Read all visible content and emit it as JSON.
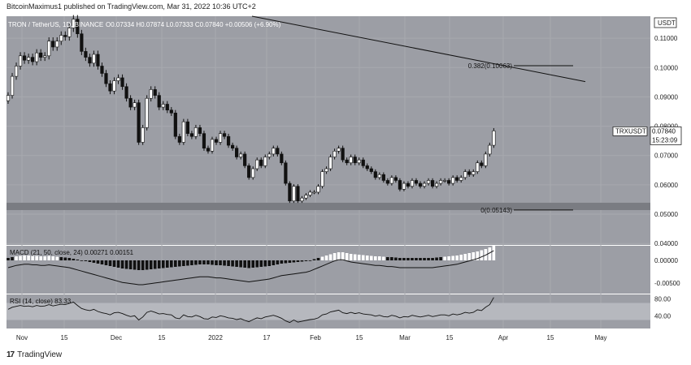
{
  "header": {
    "published": "BitcoinMaximus1 published on TradingView.com, Mar 31, 2022 10:36 UTC+2"
  },
  "footer": {
    "brand": "TradingView",
    "logo": "17"
  },
  "chart_data": {
    "type": "candlestick",
    "symbol_line": "TRON / TetherUS, 1D, BINANCE",
    "ohlc_line": "O0.07334  H0.07874  L0.07333  C0.07840  +0.00506 (+6.90%)",
    "currency": "USDT",
    "price_ticks": [
      "0.11000",
      "0.10000",
      "0.09000",
      "0.08000",
      "0.07000",
      "0.06000",
      "0.05000",
      "0.04000"
    ],
    "price_range": [
      0.0395,
      0.1175
    ],
    "x_ticks": [
      "Nov",
      "15",
      "Dec",
      "15",
      "2022",
      "17",
      "Feb",
      "15",
      "Mar",
      "15",
      "Apr",
      "15",
      "May"
    ],
    "last_price": {
      "symbol": "TRXUSDT",
      "price": "0.07840",
      "countdown": "15:23:09",
      "value": 0.0784
    },
    "fib_levels": [
      {
        "label": "0.382(0.10063)",
        "value": 0.10063
      },
      {
        "label": "0(0.05143)",
        "value": 0.05143
      }
    ],
    "support_zone": [
      0.0514,
      0.0539
    ],
    "descending_resistance": {
      "from": 0.1175,
      "to": 0.0952
    },
    "closes": [
      0.0905,
      0.097,
      0.1005,
      0.104,
      0.1025,
      0.1035,
      0.102,
      0.105,
      0.1035,
      0.104,
      0.109,
      0.107,
      0.109,
      0.111,
      0.1105,
      0.1135,
      0.1165,
      0.1115,
      0.1055,
      0.1035,
      0.1015,
      0.1045,
      0.1005,
      0.098,
      0.0945,
      0.092,
      0.0955,
      0.0965,
      0.0935,
      0.0895,
      0.0865,
      0.088,
      0.0745,
      0.0795,
      0.0895,
      0.0925,
      0.0905,
      0.0865,
      0.0875,
      0.0855,
      0.0845,
      0.0765,
      0.0745,
      0.0815,
      0.0775,
      0.0765,
      0.0795,
      0.0775,
      0.0725,
      0.0715,
      0.0755,
      0.0745,
      0.0775,
      0.0765,
      0.0735,
      0.0725,
      0.0695,
      0.0705,
      0.0665,
      0.0625,
      0.0655,
      0.0685,
      0.0665,
      0.0695,
      0.0705,
      0.0725,
      0.0705,
      0.0675,
      0.0605,
      0.0545,
      0.0595,
      0.0545,
      0.0555,
      0.0565,
      0.0575,
      0.0575,
      0.0595,
      0.0645,
      0.0655,
      0.0695,
      0.0715,
      0.0725,
      0.0685,
      0.0675,
      0.0695,
      0.0675,
      0.0685,
      0.0665,
      0.0655,
      0.0645,
      0.0625,
      0.0635,
      0.0615,
      0.0605,
      0.0625,
      0.0615,
      0.0585,
      0.0605,
      0.0595,
      0.0615,
      0.0605,
      0.0595,
      0.0605,
      0.0615,
      0.0595,
      0.0605,
      0.0615,
      0.0615,
      0.0605,
      0.0625,
      0.0615,
      0.0625,
      0.0645,
      0.0635,
      0.0645,
      0.0675,
      0.0665,
      0.0705,
      0.0735,
      0.0784
    ],
    "indicators": {
      "macd": {
        "label": "MACD (21, 50, close, 24)",
        "values": [
          "0.00271",
          "0.00151"
        ],
        "ticks": [
          "0.00000",
          "-0.00500"
        ],
        "histogram": [
          0.3,
          0.4,
          0.5,
          0.55,
          0.6,
          0.6,
          0.55,
          0.55,
          0.5,
          0.5,
          0.55,
          0.5,
          0.45,
          0.4,
          0.35,
          0.3,
          0.2,
          0.1,
          0,
          -0.1,
          -0.2,
          -0.3,
          -0.4,
          -0.5,
          -0.6,
          -0.7,
          -0.8,
          -0.9,
          -1,
          -1.05,
          -1.1,
          -1.15,
          -1.2,
          -1.2,
          -1.15,
          -1.1,
          -1.05,
          -1,
          -0.95,
          -0.9,
          -0.85,
          -0.8,
          -0.75,
          -0.7,
          -0.65,
          -0.6,
          -0.55,
          -0.5,
          -0.5,
          -0.5,
          -0.55,
          -0.6,
          -0.6,
          -0.65,
          -0.7,
          -0.75,
          -0.8,
          -0.85,
          -0.9,
          -0.95,
          -0.9,
          -0.85,
          -0.8,
          -0.75,
          -0.7,
          -0.6,
          -0.5,
          -0.4,
          -0.35,
          -0.3,
          -0.25,
          -0.2,
          -0.15,
          -0.1,
          0,
          0.15,
          0.3,
          0.45,
          0.6,
          0.75,
          0.9,
          1,
          1,
          0.9,
          0.8,
          0.75,
          0.7,
          0.65,
          0.6,
          0.55,
          0.5,
          0.5,
          0.45,
          0.4,
          0.4,
          0.35,
          0.3,
          0.3,
          0.3,
          0.3,
          0.3,
          0.3,
          0.3,
          0.3,
          0.3,
          0.35,
          0.4,
          0.45,
          0.5,
          0.55,
          0.6,
          0.7,
          0.8,
          0.9,
          1,
          1.1,
          1.25,
          1.4,
          1.6,
          1.8
        ]
      },
      "rsi": {
        "label": "RSI (14, close)",
        "value": "83.33",
        "ticks": [
          "80.00",
          "40.00"
        ],
        "band": [
          30,
          70
        ],
        "values": [
          55,
          60,
          62,
          64,
          62,
          63,
          61,
          64,
          62,
          63,
          66,
          63,
          65,
          67,
          66,
          69,
          72,
          64,
          57,
          54,
          52,
          55,
          50,
          47,
          45,
          42,
          47,
          48,
          45,
          41,
          38,
          40,
          30,
          37,
          48,
          51,
          48,
          44,
          45,
          43,
          42,
          35,
          33,
          42,
          38,
          37,
          41,
          38,
          33,
          32,
          37,
          36,
          40,
          38,
          35,
          34,
          31,
          33,
          29,
          26,
          31,
          35,
          33,
          37,
          39,
          41,
          38,
          34,
          28,
          24,
          30,
          25,
          27,
          29,
          31,
          32,
          35,
          42,
          44,
          49,
          51,
          53,
          47,
          45,
          48,
          45,
          47,
          44,
          43,
          42,
          39,
          41,
          38,
          37,
          41,
          39,
          35,
          38,
          37,
          41,
          39,
          37,
          39,
          41,
          38,
          40,
          42,
          42,
          40,
          44,
          42,
          44,
          48,
          46,
          48,
          54,
          52,
          60,
          66,
          83
        ]
      }
    }
  },
  "colors": {
    "panel": "#9c9ea5",
    "grid": "#a7a9af",
    "support": "#7a7c82",
    "up": "#ffffff",
    "down": "#111111"
  }
}
